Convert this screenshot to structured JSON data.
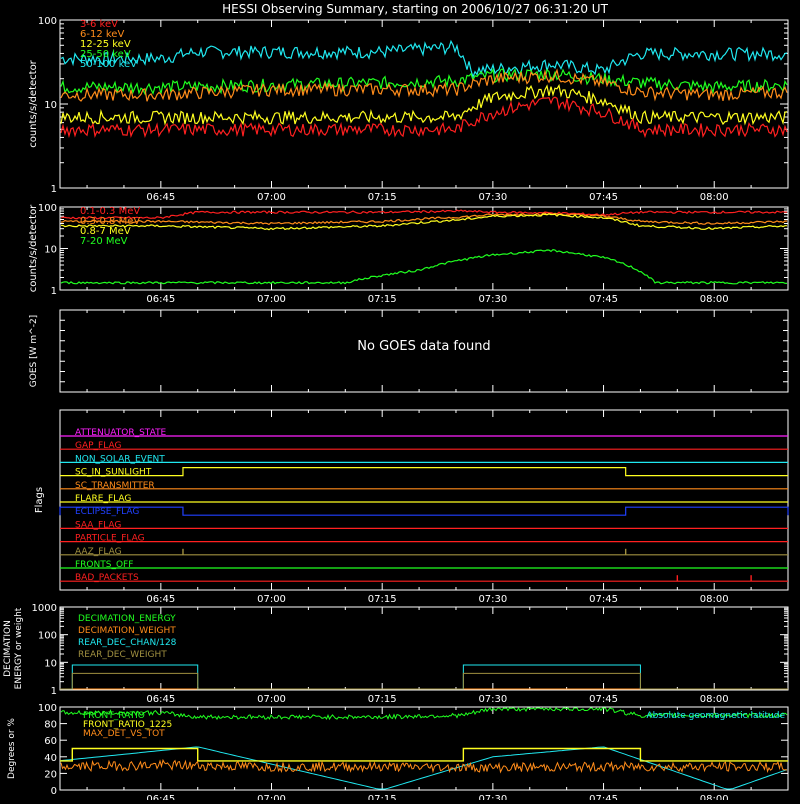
{
  "title": "HESSI Observing Summary, starting on 2006/10/27 06:31:20 UT",
  "time_ticks": [
    "06:45",
    "07:00",
    "07:15",
    "07:30",
    "07:45",
    "08:00"
  ],
  "chart_data": [
    {
      "type": "line",
      "panel": "light curves (low energy)",
      "ylabel": "counts/s/detector",
      "yscale": "log",
      "ylim": [
        1,
        100
      ],
      "yticks": [
        "100",
        "10",
        "1"
      ],
      "xlim": [
        "06:31:20",
        "08:10"
      ],
      "eclipse_intervals": [
        [
          "06:31:20",
          "06:48"
        ],
        [
          "07:48",
          "08:10"
        ]
      ],
      "saa_like_gap": [
        "07:26",
        "07:50"
      ],
      "legend_position": "top-left",
      "series": [
        {
          "name": "3-6 keV",
          "color": "#ff2020",
          "x": [
            "06:31",
            "06:45",
            "07:00",
            "07:15",
            "07:25",
            "07:30",
            "07:38",
            "07:45",
            "07:50",
            "08:00",
            "08:10"
          ],
          "values": [
            5,
            5,
            5,
            5,
            5,
            8,
            11,
            8,
            5,
            5,
            5
          ]
        },
        {
          "name": "6-12 keV",
          "color": "#ff8c1a",
          "x": [
            "06:31",
            "06:45",
            "07:00",
            "07:15",
            "07:25",
            "07:30",
            "07:38",
            "07:45",
            "07:50",
            "08:00",
            "08:10"
          ],
          "values": [
            13,
            13,
            15,
            15,
            15,
            20,
            22,
            18,
            14,
            13,
            14
          ]
        },
        {
          "name": "12-25 keV",
          "color": "#ffff20",
          "x": [
            "06:31",
            "06:45",
            "07:00",
            "07:15",
            "07:25",
            "07:30",
            "07:38",
            "07:45",
            "07:50",
            "08:00",
            "08:10"
          ],
          "values": [
            7,
            7,
            7,
            7,
            7,
            12,
            15,
            11,
            7,
            7,
            7
          ]
        },
        {
          "name": "25-50 keV",
          "color": "#20ff20",
          "x": [
            "06:31",
            "06:45",
            "07:00",
            "07:15",
            "07:25",
            "07:30",
            "07:38",
            "07:45",
            "07:50",
            "08:00",
            "08:10"
          ],
          "values": [
            16,
            16,
            17,
            18,
            19,
            22,
            23,
            20,
            18,
            16,
            17
          ]
        },
        {
          "name": "50-100 keV",
          "color": "#20e8f0",
          "x": [
            "06:31",
            "06:45",
            "06:50",
            "07:00",
            "07:15",
            "07:25",
            "07:27",
            "07:30",
            "07:38",
            "07:45",
            "07:50",
            "08:00",
            "08:10"
          ],
          "values": [
            35,
            35,
            42,
            42,
            42,
            48,
            25,
            26,
            30,
            25,
            40,
            40,
            40
          ]
        }
      ]
    },
    {
      "type": "line",
      "panel": "light curves (high energy)",
      "ylabel": "counts/s/detector",
      "yscale": "log",
      "ylim": [
        1,
        100
      ],
      "yticks": [
        "100",
        "10",
        "1"
      ],
      "xlim": [
        "06:31:20",
        "08:10"
      ],
      "legend_position": "top-left",
      "series": [
        {
          "name": "0.1-0.3 MeV",
          "color": "#ff2020",
          "x": [
            "06:31",
            "06:45",
            "06:50",
            "07:00",
            "07:15",
            "07:26",
            "07:30",
            "07:38",
            "07:45",
            "07:50",
            "08:00",
            "08:10"
          ],
          "values": [
            55,
            55,
            75,
            75,
            75,
            80,
            75,
            72,
            65,
            75,
            75,
            75
          ]
        },
        {
          "name": "0.3-0.8 MeV",
          "color": "#ff8c1a",
          "x": [
            "06:31",
            "06:45",
            "07:00",
            "07:15",
            "07:26",
            "07:30",
            "07:38",
            "07:45",
            "07:50",
            "08:00",
            "08:10"
          ],
          "values": [
            45,
            45,
            40,
            45,
            58,
            65,
            68,
            60,
            45,
            40,
            45
          ]
        },
        {
          "name": "0.8-7 MeV",
          "color": "#ffff20",
          "x": [
            "06:31",
            "06:45",
            "07:00",
            "07:15",
            "07:26",
            "07:30",
            "07:38",
            "07:45",
            "07:50",
            "08:00",
            "08:10"
          ],
          "values": [
            35,
            35,
            30,
            35,
            50,
            60,
            65,
            55,
            35,
            30,
            35
          ]
        },
        {
          "name": "7-20 MeV",
          "color": "#20ff20",
          "x": [
            "06:31",
            "07:10",
            "07:20",
            "07:30",
            "07:38",
            "07:45",
            "07:52",
            "08:10"
          ],
          "values": [
            1.5,
            1.5,
            3,
            7,
            9,
            6,
            1.5,
            1.5
          ]
        }
      ]
    },
    {
      "type": "line",
      "panel": "GOES",
      "ylabel": "GOES [W m^-2]",
      "message": "No GOES data found",
      "series": []
    },
    {
      "type": "line",
      "panel": "flags",
      "ylabel": "Flags",
      "flags": [
        {
          "name": "ATTENUATOR_STATE",
          "color": "#ff20ff",
          "high_intervals": []
        },
        {
          "name": "GAP_FLAG",
          "color": "#ff2020",
          "high_intervals": []
        },
        {
          "name": "NON_SOLAR_EVENT",
          "color": "#20e8f0",
          "high_intervals": []
        },
        {
          "name": "SC_IN_SUNLIGHT",
          "color": "#ffff20",
          "high_intervals": [
            [
              "06:48",
              "07:48"
            ]
          ]
        },
        {
          "name": "SC_TRANSMITTER",
          "color": "#ff8c1a",
          "high_intervals": []
        },
        {
          "name": "FLARE_FLAG",
          "color": "#ffff20",
          "high_intervals": []
        },
        {
          "name": "ECLIPSE_FLAG",
          "color": "#2040ff",
          "high_intervals": [
            [
              "06:31",
              "06:48"
            ],
            [
              "07:48",
              "08:10"
            ]
          ]
        },
        {
          "name": "SAA_FLAG",
          "color": "#ff2020",
          "high_intervals": []
        },
        {
          "name": "PARTICLE_FLAG",
          "color": "#ff2020",
          "high_intervals": []
        },
        {
          "name": "AAZ_FLAG",
          "color": "#a09040",
          "spikes": [
            "06:48",
            "07:48"
          ]
        },
        {
          "name": "FRONTS_OFF",
          "color": "#20ff20",
          "high_intervals": []
        },
        {
          "name": "BAD_PACKETS",
          "color": "#ff2020",
          "spikes": [
            "07:55",
            "08:05"
          ]
        }
      ]
    },
    {
      "type": "line",
      "panel": "decimation",
      "ylabel": "DECIMATION ENERGY or weight",
      "yscale": "log",
      "ylim": [
        1,
        1000
      ],
      "yticks": [
        "1000",
        "100",
        "10",
        "1"
      ],
      "legend_position": "top-left",
      "series": [
        {
          "name": "DECIMATION_ENERGY",
          "color": "#20ff20",
          "x": [
            "06:31",
            "08:10"
          ],
          "values": [
            1,
            1
          ]
        },
        {
          "name": "DECIMATION_WEIGHT",
          "color": "#ff8c1a",
          "x": [
            "06:31",
            "08:10"
          ],
          "values": [
            1,
            1
          ]
        },
        {
          "name": "REAR_DEC_CHAN/128",
          "color": "#20e8f0",
          "intervals": [
            [
              "06:33",
              "06:50",
              8
            ],
            [
              "07:26",
              "07:50",
              8
            ]
          ]
        },
        {
          "name": "REAR_DEC_WEIGHT",
          "color": "#a09040",
          "intervals": [
            [
              "06:33",
              "06:50",
              4
            ],
            [
              "07:26",
              "07:50",
              4
            ]
          ]
        }
      ]
    },
    {
      "type": "line",
      "panel": "ratios",
      "ylabel": "Degrees or %",
      "ylim": [
        0,
        100
      ],
      "yticks": [
        "100",
        "80",
        "60",
        "40",
        "20",
        "0"
      ],
      "annotation": "Absolute geomagnetic latitude",
      "legend_position": "top-left",
      "series": [
        {
          "name": "FRONT_RATIO",
          "color": "#20ff20",
          "x": [
            "06:31",
            "06:45",
            "06:50",
            "07:00",
            "07:15",
            "07:26",
            "07:30",
            "07:45",
            "07:50",
            "08:00",
            "08:10"
          ],
          "values": [
            93,
            93,
            88,
            88,
            88,
            90,
            98,
            98,
            90,
            90,
            90
          ]
        },
        {
          "name": "FRONT_RATIO_1225",
          "color": "#ffff20",
          "x": [
            "06:31",
            "06:33",
            "06:50",
            "07:26",
            "07:50",
            "08:10"
          ],
          "values": [
            35,
            50,
            35,
            50,
            35,
            35
          ]
        },
        {
          "name": "MAX_DET_VS_TOT",
          "color": "#ff8c1a",
          "x": [
            "06:31",
            "06:45",
            "07:00",
            "07:15",
            "07:30",
            "07:45",
            "08:00",
            "08:10"
          ],
          "values": [
            28,
            30,
            28,
            28,
            27,
            28,
            28,
            28
          ]
        },
        {
          "name": "Absolute geomagnetic latitude",
          "color": "#20e8f0",
          "x": [
            "06:31",
            "06:50",
            "07:15",
            "07:30",
            "07:45",
            "08:02",
            "08:10"
          ],
          "values": [
            35,
            52,
            0,
            40,
            52,
            0,
            25
          ]
        }
      ]
    }
  ]
}
